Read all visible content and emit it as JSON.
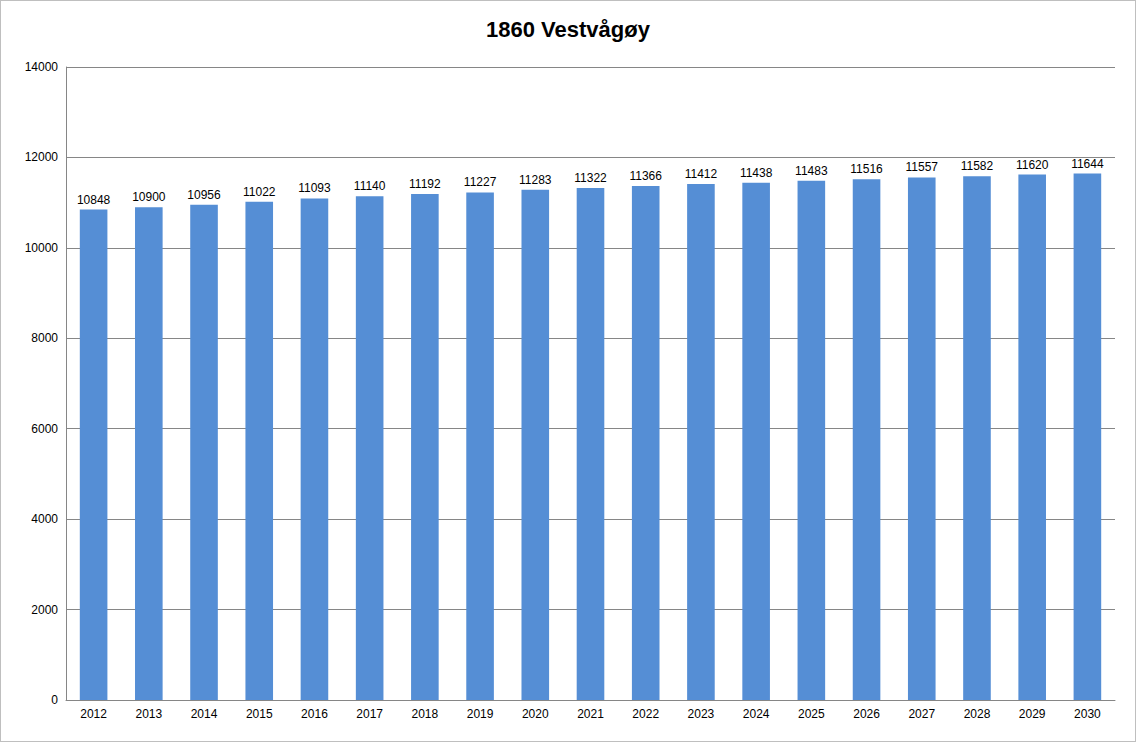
{
  "chart_data": {
    "type": "bar",
    "title": "1860 Vestvågøy",
    "categories": [
      "2012",
      "2013",
      "2014",
      "2015",
      "2016",
      "2017",
      "2018",
      "2019",
      "2020",
      "2021",
      "2022",
      "2023",
      "2024",
      "2025",
      "2026",
      "2027",
      "2028",
      "2029",
      "2030"
    ],
    "values": [
      10848,
      10900,
      10956,
      11022,
      11093,
      11140,
      11192,
      11227,
      11283,
      11322,
      11366,
      11412,
      11438,
      11483,
      11516,
      11557,
      11582,
      11620,
      11644
    ],
    "color": "#558ed5",
    "ylim": [
      0,
      14000
    ],
    "yticks": [
      0,
      2000,
      4000,
      6000,
      8000,
      10000,
      12000,
      14000
    ],
    "grid": true,
    "data_labels": true
  }
}
